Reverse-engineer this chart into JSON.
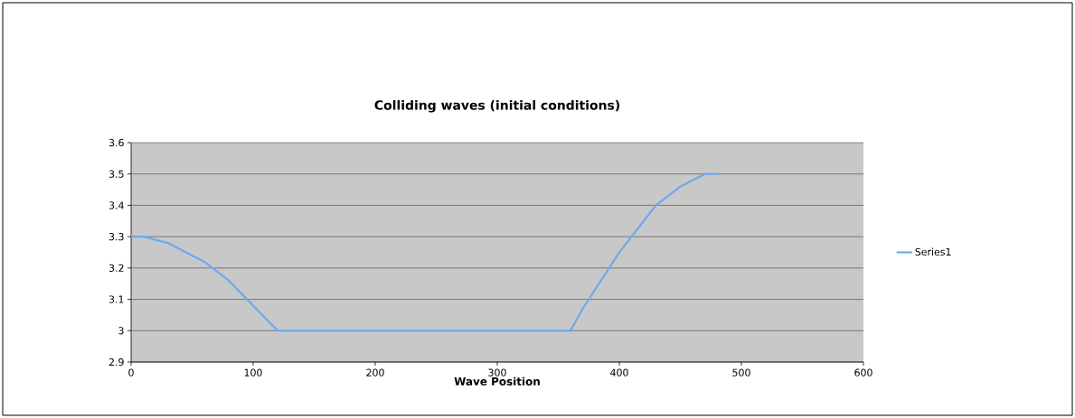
{
  "chart_data": {
    "type": "line",
    "title": "Colliding waves (initial conditions)",
    "xlabel": "Wave Position",
    "x": [
      0,
      10,
      20,
      30,
      40,
      50,
      60,
      70,
      80,
      90,
      100,
      110,
      120,
      360,
      370,
      380,
      390,
      400,
      410,
      420,
      430,
      440,
      450,
      460,
      470,
      480
    ],
    "series": [
      {
        "name": "Series1",
        "color": "#6fa8f0",
        "values": [
          3.3,
          3.3,
          3.29,
          3.28,
          3.26,
          3.24,
          3.22,
          3.19,
          3.16,
          3.12,
          3.08,
          3.04,
          3.0,
          3.0,
          3.07,
          3.13,
          3.19,
          3.25,
          3.3,
          3.35,
          3.4,
          3.43,
          3.46,
          3.48,
          3.5,
          3.5
        ]
      }
    ],
    "xlim": [
      0,
      600
    ],
    "ylim": [
      2.9,
      3.6
    ],
    "xticks": [
      0,
      100,
      200,
      300,
      400,
      500,
      600
    ],
    "yticks": [
      2.9,
      3,
      3.1,
      3.2,
      3.3,
      3.4,
      3.5,
      3.6
    ],
    "grid": "y",
    "legend": "right",
    "marker": "none",
    "line_style": "solid"
  }
}
